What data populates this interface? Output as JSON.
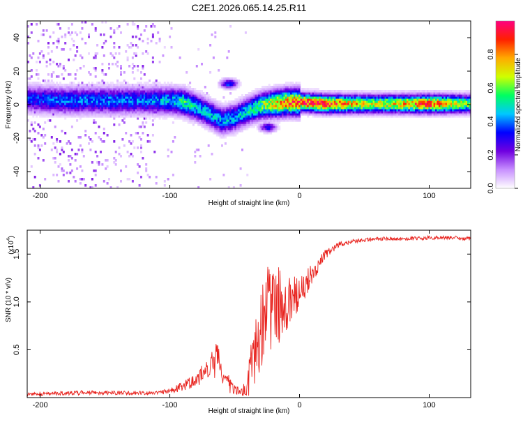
{
  "chart_data": [
    {
      "type": "heatmap",
      "title": "C2E1.2026.065.14.25.R11",
      "xlabel": "Height of straight line (km)",
      "ylabel": "Frequency (Hz)",
      "xlim": [
        -210,
        132
      ],
      "ylim": [
        -50,
        50
      ],
      "x_ticks": [
        -200,
        -100,
        0,
        100
      ],
      "x_tick_labels": [
        "-200",
        "-100",
        "0",
        "100"
      ],
      "y_ticks": [
        -40,
        -20,
        0,
        20,
        40
      ],
      "y_tick_labels": [
        "-40",
        "-20",
        "0",
        "20",
        "40"
      ],
      "grid": false,
      "colorbar": {
        "label": "Normalized spectral amplitude",
        "range": [
          0,
          1
        ],
        "ticks": [
          0,
          0.2,
          0.4,
          0.6,
          0.8
        ],
        "tick_labels": [
          "0.0",
          "0.2",
          "0.4",
          "0.6",
          "0.8"
        ],
        "colors": [
          "#ffffff",
          "#c890ff",
          "#7000e0",
          "#0000ff",
          "#00c8ff",
          "#00ff60",
          "#d0ff00",
          "#ffaa00",
          "#ff2000",
          "#ff0080"
        ]
      },
      "ridge": {
        "x": [
          -210,
          -180,
          -150,
          -120,
          -100,
          -90,
          -80,
          -70,
          -60,
          -50,
          -40,
          -30,
          -20,
          -10,
          0,
          20,
          40,
          60,
          80,
          100,
          132
        ],
        "frequency": [
          3,
          2,
          2,
          2,
          2,
          1,
          -2,
          -6,
          -10,
          -8,
          -4,
          -1,
          0,
          1,
          1,
          0,
          0,
          0,
          0,
          0,
          0
        ],
        "amplitude": [
          0.35,
          0.4,
          0.4,
          0.4,
          0.45,
          0.55,
          0.5,
          0.45,
          0.45,
          0.45,
          0.5,
          0.6,
          0.75,
          0.85,
          0.9,
          0.95,
          0.75,
          0.7,
          0.75,
          0.9,
          0.6
        ]
      },
      "secondary_features": [
        {
          "x": -55,
          "frequency": 12,
          "amplitude": 0.4
        },
        {
          "x": -25,
          "frequency": -14,
          "amplitude": 0.35
        }
      ]
    },
    {
      "type": "line",
      "xlabel": "Height of straight line (km)",
      "ylabel": "SNR (10 * v/v)",
      "y_scale_label": "(x10",
      "y_scale_exponent": "4",
      "xlim": [
        -210,
        132
      ],
      "ylim": [
        0,
        1.75
      ],
      "x_ticks": [
        -200,
        -100,
        0,
        100
      ],
      "x_tick_labels": [
        "-200",
        "-100",
        "0",
        "100"
      ],
      "y_ticks": [
        0.5,
        1.0,
        1.5
      ],
      "y_tick_labels": [
        "0.5",
        "1.0",
        "1.5"
      ],
      "grid": false,
      "series": [
        {
          "color": "#e8231e",
          "x": [
            -210,
            -190,
            -170,
            -150,
            -130,
            -110,
            -100,
            -90,
            -80,
            -75,
            -70,
            -65,
            -62,
            -60,
            -55,
            -50,
            -45,
            -40,
            -38,
            -35,
            -32,
            -30,
            -28,
            -25,
            -22,
            -20,
            -18,
            -15,
            -12,
            -10,
            -5,
            0,
            5,
            10,
            15,
            20,
            25,
            30,
            40,
            50,
            60,
            80,
            100,
            120,
            132
          ],
          "y": [
            0.03,
            0.04,
            0.05,
            0.05,
            0.05,
            0.05,
            0.07,
            0.12,
            0.18,
            0.25,
            0.3,
            0.38,
            0.5,
            0.2,
            0.15,
            0.08,
            0.05,
            0.08,
            0.25,
            0.45,
            0.6,
            0.7,
            0.8,
            0.9,
            1.0,
            1.1,
            1.0,
            0.95,
            0.95,
            1.0,
            1.05,
            1.1,
            1.2,
            1.3,
            1.4,
            1.5,
            1.55,
            1.6,
            1.63,
            1.65,
            1.66,
            1.66,
            1.67,
            1.67,
            1.66
          ],
          "noise": [
            0.02,
            0.02,
            0.025,
            0.02,
            0.02,
            0.02,
            0.03,
            0.05,
            0.07,
            0.1,
            0.12,
            0.18,
            0.15,
            0.1,
            0.1,
            0.05,
            0.04,
            0.15,
            0.3,
            0.35,
            0.4,
            0.4,
            0.45,
            0.45,
            0.5,
            0.55,
            0.45,
            0.4,
            0.35,
            0.3,
            0.25,
            0.2,
            0.15,
            0.1,
            0.08,
            0.05,
            0.04,
            0.03,
            0.02,
            0.02,
            0.02,
            0.02,
            0.02,
            0.02,
            0.02
          ]
        }
      ]
    }
  ]
}
